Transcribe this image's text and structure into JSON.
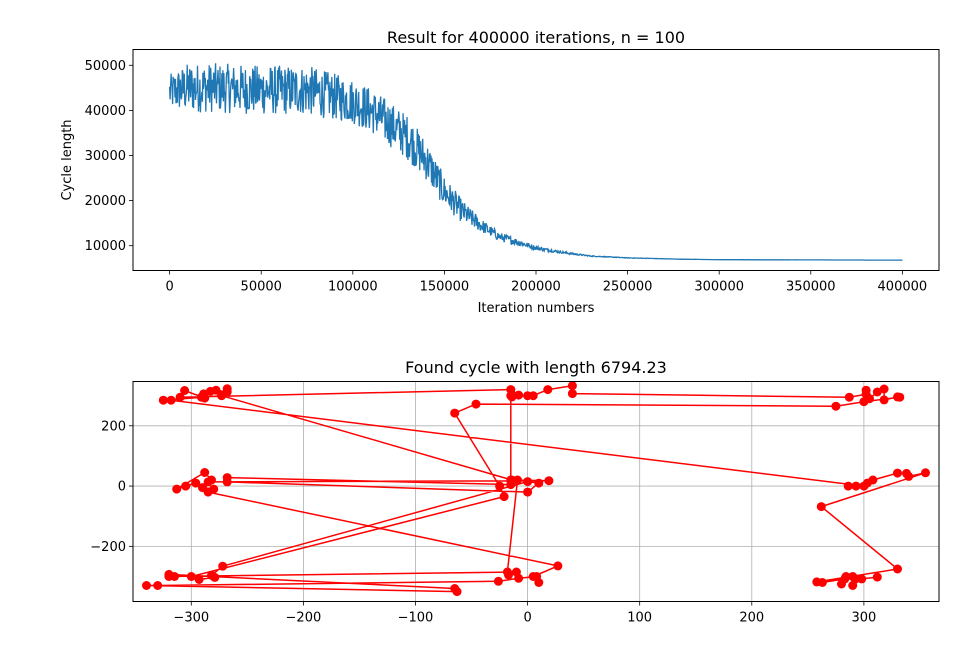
{
  "chart_data": [
    {
      "type": "line",
      "title": "Result for 400000 iterations, n = 100",
      "xlabel": "Iteration numbers",
      "ylabel": "Cycle length",
      "xlim": [
        -20000,
        420000
      ],
      "ylim": [
        4500,
        53500
      ],
      "xticks": [
        0,
        50000,
        100000,
        150000,
        200000,
        250000,
        300000,
        350000,
        400000
      ],
      "yticks": [
        10000,
        20000,
        30000,
        40000,
        50000
      ],
      "grid": false,
      "line_color": "#1f77b4",
      "series": [
        {
          "x": [
            0,
            10000,
            25000,
            50000,
            75000,
            100000,
            110000,
            120000,
            130000,
            140000,
            150000,
            160000,
            170000,
            180000,
            190000,
            200000,
            210000,
            220000,
            230000,
            250000,
            280000,
            300000,
            350000,
            400000
          ],
          "y": [
            44000,
            45000,
            45000,
            44500,
            44500,
            42000,
            40000,
            37000,
            34000,
            29000,
            22000,
            17500,
            14500,
            12000,
            10800,
            9500,
            8800,
            8200,
            7700,
            7300,
            7000,
            6900,
            6850,
            6794
          ],
          "spread": [
            4000,
            5500,
            5500,
            5500,
            5500,
            5000,
            5000,
            5000,
            5000,
            4500,
            3500,
            2500,
            1500,
            1000,
            800,
            500,
            300,
            200,
            100,
            50,
            20,
            10,
            5,
            0
          ]
        }
      ]
    },
    {
      "type": "line",
      "title": "Found cycle with length 6794.23",
      "xlim": [
        -352,
        367
      ],
      "ylim": [
        -383,
        347
      ],
      "xticks": [
        -300,
        -200,
        -100,
        0,
        100,
        200,
        300
      ],
      "yticks": [
        -200,
        0,
        200
      ],
      "grid": true,
      "line_color": "#ff0000",
      "marker_color": "#ff0000",
      "path": [
        [
          -268,
          323
        ],
        [
          -268,
          312
        ],
        [
          -278,
          318
        ],
        [
          -283,
          314
        ],
        [
          -289,
          306
        ],
        [
          -291,
          295
        ],
        [
          -288,
          292
        ],
        [
          -306,
          317
        ],
        [
          -310,
          295
        ],
        [
          -15,
          320
        ],
        [
          -8,
          302
        ],
        [
          -14,
          296
        ],
        [
          0,
          300
        ],
        [
          5,
          300
        ],
        [
          18,
          320
        ],
        [
          40,
          333
        ],
        [
          40,
          307
        ],
        [
          287,
          295
        ],
        [
          302,
          305
        ],
        [
          302,
          318
        ],
        [
          305,
          290
        ],
        [
          312,
          312
        ],
        [
          318,
          322
        ],
        [
          318,
          286
        ],
        [
          330,
          296
        ],
        [
          332,
          295
        ],
        [
          300,
          280
        ],
        [
          275,
          265
        ],
        [
          -46,
          272
        ],
        [
          -65,
          242
        ],
        [
          -25,
          0
        ],
        [
          -21,
          -35
        ],
        [
          -300,
          -300
        ],
        [
          -293,
          -310
        ],
        [
          -279,
          -303
        ],
        [
          -282,
          -296
        ],
        [
          -272,
          -266
        ],
        [
          0,
          15
        ],
        [
          10,
          10
        ],
        [
          0,
          -20
        ],
        [
          -268,
          14
        ],
        [
          -268,
          28
        ],
        [
          -15,
          5
        ],
        [
          -15,
          300
        ],
        [
          -15,
          20
        ],
        [
          -9,
          20
        ],
        [
          -18,
          -285
        ],
        [
          -17,
          -295
        ],
        [
          -10,
          -285
        ],
        [
          -320,
          -300
        ],
        [
          -315,
          -300
        ],
        [
          -320,
          -293
        ],
        [
          -65,
          -340
        ],
        [
          -63,
          -350
        ],
        [
          -340,
          -330
        ],
        [
          -330,
          -330
        ],
        [
          -26,
          -316
        ],
        [
          -8,
          -306
        ],
        [
          8,
          -300
        ],
        [
          10,
          -320
        ],
        [
          5,
          -300
        ],
        [
          27,
          -265
        ],
        [
          -285,
          -20
        ],
        [
          -280,
          -10
        ],
        [
          -290,
          -5
        ],
        [
          -296,
          10
        ],
        [
          -305,
          0
        ],
        [
          -313,
          -10
        ],
        [
          -288,
          45
        ],
        [
          -282,
          20
        ],
        [
          -285,
          14
        ],
        [
          19,
          18
        ],
        [
          -14,
          20
        ],
        [
          -273,
          300
        ],
        [
          -325,
          285
        ],
        [
          -318,
          285
        ],
        [
          300,
          0
        ],
        [
          286,
          0
        ],
        [
          293,
          0
        ],
        [
          303,
          10
        ],
        [
          308,
          20
        ],
        [
          330,
          43
        ],
        [
          338,
          42
        ],
        [
          340,
          32
        ],
        [
          355,
          44
        ],
        [
          262,
          -68
        ],
        [
          330,
          -275
        ],
        [
          258,
          -318
        ],
        [
          263,
          -320
        ],
        [
          283,
          -308
        ],
        [
          280,
          -325
        ],
        [
          284,
          -300
        ],
        [
          290,
          -300
        ],
        [
          292,
          -307
        ],
        [
          290,
          -330
        ],
        [
          298,
          -308
        ],
        [
          312,
          -302
        ]
      ]
    }
  ]
}
